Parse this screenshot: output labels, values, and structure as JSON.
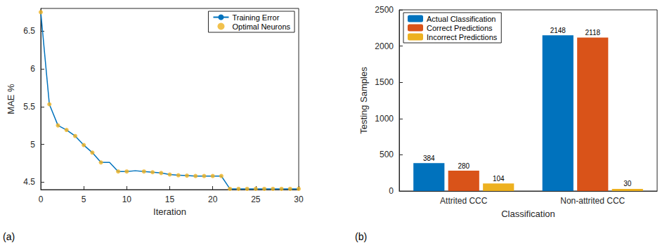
{
  "chart_data": [
    {
      "type": "line",
      "annotations": [
        "(a)"
      ],
      "x_label": "Iteration",
      "y_label": "MAE %",
      "x": [
        0,
        1,
        2,
        3,
        4,
        5,
        6,
        7,
        8,
        9,
        10,
        11,
        12,
        13,
        14,
        15,
        16,
        17,
        18,
        19,
        20,
        21,
        22,
        23,
        24,
        25,
        26,
        27,
        28,
        29,
        30
      ],
      "series": [
        {
          "name": "Training Error",
          "type": "line",
          "line_style": "solid",
          "color": "#0072BD",
          "values": [
            6.75,
            5.53,
            5.25,
            5.19,
            5.11,
            4.99,
            4.89,
            4.76,
            4.76,
            4.64,
            4.64,
            4.65,
            4.64,
            4.63,
            4.62,
            4.6,
            4.59,
            4.585,
            4.58,
            4.58,
            4.58,
            4.58,
            4.41,
            4.41,
            4.41,
            4.41,
            4.41,
            4.41,
            4.41,
            4.41,
            4.41
          ]
        },
        {
          "name": "Optimal Neurons",
          "type": "scatter",
          "marker": "circle",
          "color": "#EDB120",
          "values": [
            6.75,
            5.53,
            5.25,
            5.19,
            5.11,
            4.99,
            4.89,
            4.76,
            null,
            4.64,
            4.64,
            null,
            4.64,
            4.63,
            4.62,
            4.6,
            4.59,
            4.585,
            4.58,
            4.58,
            4.58,
            4.58,
            4.41,
            4.41,
            4.41,
            4.41,
            4.41,
            4.41,
            4.41,
            4.41,
            4.41
          ]
        }
      ],
      "xlim": [
        0,
        30
      ],
      "xticks": [
        0,
        5,
        10,
        15,
        20,
        25,
        30
      ],
      "ylim": [
        4.4,
        6.8
      ],
      "yticks": [
        4.5,
        5,
        5.5,
        6,
        6.5
      ],
      "legend": "top-right",
      "grid": false
    },
    {
      "type": "bar",
      "annotations": [
        "(b)"
      ],
      "x_label": "Classification",
      "y_label": "Testing Samples",
      "categories": [
        "Attrited CCC",
        "Non-attrited CCC"
      ],
      "series": [
        {
          "name": "Actual Classification",
          "color": "#0072BD",
          "values": [
            384,
            2148
          ]
        },
        {
          "name": "Correct Predictions",
          "color": "#D95319",
          "values": [
            280,
            2118
          ]
        },
        {
          "name": "Incorrect Predictions",
          "color": "#EDB120",
          "values": [
            104,
            30
          ]
        }
      ],
      "ylim": [
        0,
        2500
      ],
      "yticks": [
        0,
        500,
        1000,
        1500,
        2000,
        2500
      ],
      "data_labels": true,
      "legend": "top-left",
      "grid": false
    }
  ]
}
